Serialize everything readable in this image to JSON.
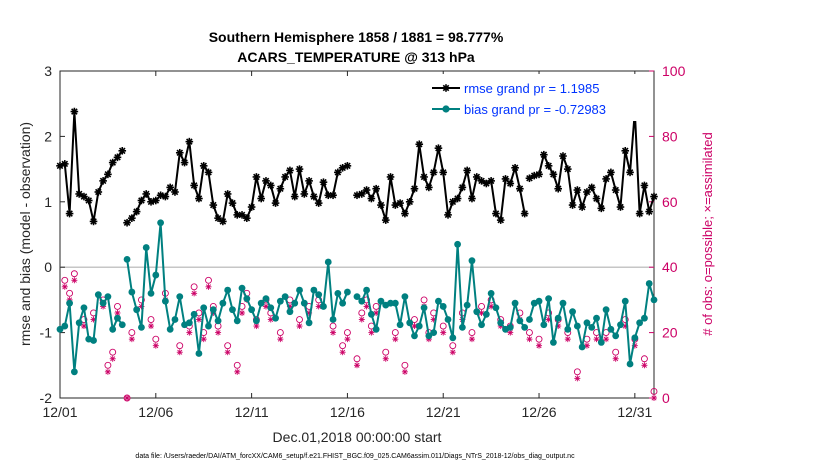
{
  "title_line1": "Southern Hemisphere 1858 / 1881 = 98.777%",
  "title_line2": "ACARS_TEMPERATURE @ 313 hPa",
  "footnote": "data file: /Users/raeder/DAI/ATM_forcXX/CAM6_setup/f.e21.FHIST_BGC.f09_025.CAM6assim.011/Diags_NTrS_2018-12/obs_diag_output.nc",
  "colors": {
    "rmse": "#000000",
    "bias": "#008080",
    "obs": "#cc0066",
    "zero": "#b3b3b3",
    "legend_text": "#0033ff"
  },
  "chart_data": {
    "type": "line",
    "xlabel": "Dec.01,2018 00:00:00 start",
    "ylabel": "rmse and bias (model - observation)",
    "ylabel_right": "# of obs: o=possible; ×=assimilated",
    "xlim": [
      0,
      31
    ],
    "ylim": [
      -2,
      3
    ],
    "ylim_right": [
      0,
      100
    ],
    "xticks": [
      0,
      5,
      10,
      15,
      20,
      25,
      30
    ],
    "xtick_labels": [
      "12/01",
      "12/06",
      "12/11",
      "12/16",
      "12/21",
      "12/26",
      "12/31"
    ],
    "yticks": [
      -2,
      -1,
      0,
      1,
      2,
      3
    ],
    "ytick_labels": [
      "-2",
      "-1",
      "0",
      "1",
      "2",
      "3"
    ],
    "yticks_right": [
      0,
      20,
      40,
      60,
      80,
      100
    ],
    "ytick_labels_right": [
      "0",
      "20",
      "40",
      "60",
      "80",
      "100"
    ],
    "legend": [
      {
        "series": "rmse",
        "label": "rmse grand pr = 1.1985"
      },
      {
        "series": "bias",
        "label": "bias grand pr = -0.72983"
      }
    ],
    "series": [
      {
        "name": "rmse",
        "segments": [
          {
            "x": [
              0.0,
              0.25,
              0.5,
              0.75,
              1.0,
              1.25,
              1.5,
              1.75,
              2.0,
              2.25,
              2.5,
              2.75,
              3.0,
              3.25
            ],
            "y": [
              1.55,
              1.58,
              0.82,
              2.38,
              1.12,
              1.08,
              1.02,
              0.7,
              1.15,
              1.32,
              1.42,
              1.6,
              1.68,
              1.78
            ]
          },
          {
            "x": [
              3.5,
              3.75,
              4.0,
              4.25,
              4.5,
              4.75,
              5.0,
              5.25,
              5.5,
              5.75,
              6.0,
              6.25,
              6.5,
              6.75,
              7.0,
              7.25,
              7.5,
              7.75,
              8.0,
              8.25,
              8.5,
              8.75,
              9.0,
              9.25,
              9.5,
              9.75,
              10.0,
              10.25,
              10.5,
              10.75,
              11.0,
              11.25,
              11.5,
              11.75,
              12.0,
              12.25,
              12.5,
              12.75,
              13.0,
              13.25,
              13.5,
              13.75,
              14.0,
              14.25,
              14.5,
              14.75,
              15.0
            ],
            "y": [
              0.68,
              0.75,
              0.85,
              1.02,
              1.12,
              1.0,
              1.02,
              1.1,
              1.08,
              1.22,
              1.15,
              1.75,
              1.6,
              1.92,
              1.25,
              1.05,
              1.55,
              1.45,
              0.95,
              0.75,
              0.7,
              1.12,
              0.98,
              0.8,
              0.8,
              0.75,
              0.92,
              1.38,
              1.05,
              1.32,
              1.25,
              0.98,
              1.2,
              1.38,
              1.48,
              1.08,
              1.5,
              1.12,
              1.32,
              1.08,
              0.98,
              1.3,
              1.1,
              1.1,
              1.45,
              1.52,
              1.55
            ]
          },
          {
            "x": [
              15.5,
              15.75,
              16.0,
              16.25,
              16.5,
              16.75,
              17.0,
              17.25,
              17.5,
              17.75,
              18.0,
              18.25,
              18.5,
              18.75,
              19.0,
              19.25,
              19.5,
              19.75,
              20.0,
              20.25,
              20.5,
              20.75,
              21.0,
              21.25,
              21.5,
              21.75,
              22.0,
              22.25,
              22.5,
              22.75,
              23.0,
              23.25,
              23.5,
              23.75,
              24.0,
              24.25
            ],
            "y": [
              1.1,
              1.12,
              1.18,
              1.05,
              1.2,
              0.95,
              0.72,
              1.38,
              0.95,
              0.98,
              0.82,
              1.0,
              1.2,
              1.88,
              1.38,
              1.22,
              1.45,
              1.82,
              1.45,
              0.8,
              1.0,
              1.05,
              1.22,
              1.48,
              1.05,
              1.38,
              1.32,
              1.28,
              1.32,
              0.82,
              0.72,
              1.35,
              1.28,
              1.52,
              1.2,
              0.82
            ]
          },
          {
            "x": [
              24.5,
              24.75,
              25.0,
              25.25,
              25.5,
              25.75,
              26.0,
              26.25,
              26.5,
              26.75,
              27.0,
              27.25,
              27.5,
              27.75,
              28.0,
              28.25,
              28.5,
              28.75,
              29.0,
              29.25,
              29.5,
              29.75,
              30.0,
              30.25,
              30.5,
              30.75,
              31.0
            ],
            "y": [
              1.36,
              1.4,
              1.42,
              1.72,
              1.55,
              1.42,
              1.2,
              1.7,
              1.5,
              0.95,
              1.18,
              0.92,
              1.15,
              1.22,
              1.05,
              0.9,
              1.35,
              1.45,
              1.18,
              0.92,
              1.78,
              1.45,
              2.38,
              0.82,
              1.25,
              0.85,
              1.08
            ]
          }
        ]
      },
      {
        "name": "bias",
        "segments": [
          {
            "x": [
              0.0,
              0.25,
              0.5,
              0.75,
              1.0,
              1.25,
              1.5,
              1.75,
              2.0,
              2.25,
              2.5,
              2.75,
              3.0,
              3.25
            ],
            "y": [
              -0.95,
              -0.9,
              -0.55,
              -1.6,
              -0.85,
              -0.62,
              -1.1,
              -1.12,
              -0.42,
              -0.55,
              -0.45,
              -0.95,
              -0.78,
              -0.88
            ]
          },
          {
            "x": [
              3.5,
              3.75,
              4.0,
              4.25,
              4.5,
              4.75,
              5.0,
              5.25,
              5.5,
              5.75,
              6.0,
              6.25,
              6.5,
              6.75,
              7.0,
              7.25,
              7.5,
              7.75,
              8.0,
              8.25,
              8.5,
              8.75,
              9.0,
              9.25,
              9.5,
              9.75,
              10.0,
              10.25,
              10.5,
              10.75,
              11.0,
              11.25,
              11.5,
              11.75,
              12.0,
              12.25,
              12.5,
              12.75,
              13.0,
              13.25,
              13.5,
              13.75,
              14.0,
              14.25,
              14.5,
              14.75,
              15.0
            ],
            "y": [
              0.12,
              -0.38,
              -0.65,
              -0.92,
              0.3,
              -0.4,
              -0.12,
              0.68,
              -0.52,
              -0.95,
              -0.8,
              -0.45,
              -0.88,
              -0.85,
              -0.72,
              -1.32,
              -0.62,
              -0.9,
              -0.65,
              -0.82,
              -0.55,
              -0.35,
              -0.65,
              -0.82,
              -0.32,
              -0.48,
              -0.65,
              -0.82,
              -0.55,
              -0.48,
              -0.62,
              -0.78,
              -0.52,
              -0.45,
              -0.68,
              -0.55,
              -0.35,
              -0.55,
              -0.85,
              -0.35,
              -0.42,
              -0.6,
              0.08,
              -0.8,
              -0.4,
              -0.55,
              -0.38
            ]
          },
          {
            "x": [
              15.5,
              15.75,
              16.0,
              16.25,
              16.5,
              16.75,
              17.0,
              17.25,
              17.5,
              17.75,
              18.0,
              18.25,
              18.5,
              18.75,
              19.0,
              19.25,
              19.5,
              19.75,
              20.0,
              20.25,
              20.5,
              20.75,
              21.0,
              21.25,
              21.5,
              21.75,
              22.0,
              22.25,
              22.5,
              22.75,
              23.0,
              23.25,
              23.5,
              23.75,
              24.0,
              24.25
            ],
            "y": [
              -0.45,
              -0.52,
              -0.35,
              -0.72,
              -0.95,
              -0.52,
              -0.58,
              -0.55,
              -0.55,
              -0.88,
              -0.45,
              -0.85,
              -1.05,
              -0.9,
              -0.62,
              -1.05,
              -1.0,
              -0.52,
              -0.6,
              -0.8,
              -1.08,
              0.35,
              -0.92,
              -0.58,
              0.1,
              -0.68,
              -0.88,
              -0.72,
              -0.4,
              -0.62,
              -0.85,
              -0.95,
              -0.92,
              -0.55,
              -0.82,
              -0.92
            ]
          },
          {
            "x": [
              24.5,
              24.75,
              25.0,
              25.25,
              25.5,
              25.75,
              26.0,
              26.25,
              26.5,
              26.75,
              27.0,
              27.25,
              27.5,
              27.75,
              28.0,
              28.25,
              28.5,
              28.75,
              29.0,
              29.25,
              29.5,
              29.75,
              30.0,
              30.25,
              30.5,
              30.75,
              31.0
            ],
            "y": [
              -0.8,
              -0.55,
              -0.52,
              -0.88,
              -0.48,
              -1.15,
              -0.78,
              -0.55,
              -0.95,
              -0.68,
              -0.9,
              -1.22,
              -0.85,
              -0.92,
              -0.78,
              -1.15,
              -0.65,
              -0.95,
              -1.05,
              -0.88,
              -0.52,
              -1.48,
              -1.08,
              -0.85,
              -0.78,
              -0.25,
              -0.5
            ]
          }
        ]
      },
      {
        "name": "obs_possible",
        "axis": "right",
        "x": [
          0.25,
          0.5,
          0.75,
          1.25,
          1.75,
          2.25,
          2.5,
          2.75,
          3.0,
          3.5,
          3.75,
          4.25,
          4.75,
          5.0,
          5.5,
          6.25,
          6.75,
          7.0,
          7.25,
          7.5,
          7.75,
          8.0,
          8.25,
          8.75,
          9.25,
          9.5,
          9.75,
          10.25,
          10.75,
          11.0,
          11.5,
          12.0,
          12.5,
          13.0,
          13.5,
          14.25,
          14.75,
          15.0,
          15.5,
          15.75,
          16.0,
          16.25,
          16.5,
          17.0,
          17.5,
          18.0,
          18.5,
          19.0,
          19.25,
          19.5,
          20.0,
          20.5,
          21.0,
          21.5,
          22.0,
          22.5,
          23.0,
          23.5,
          24.0,
          24.5,
          25.0,
          25.5,
          26.0,
          26.5,
          27.0,
          27.5,
          28.0,
          28.5,
          29.0,
          29.5,
          30.0,
          30.5,
          31.0
        ],
        "y": [
          36,
          32,
          38,
          24,
          26,
          30,
          10,
          14,
          28,
          0,
          20,
          30,
          24,
          18,
          32,
          16,
          22,
          34,
          26,
          20,
          36,
          28,
          22,
          16,
          10,
          28,
          32,
          24,
          30,
          26,
          20,
          30,
          24,
          28,
          30,
          22,
          16,
          20,
          12,
          26,
          30,
          22,
          28,
          14,
          20,
          10,
          24,
          30,
          20,
          26,
          22,
          16,
          26,
          20,
          28,
          30,
          24,
          22,
          26,
          20,
          18,
          26,
          24,
          20,
          8,
          18,
          20,
          20,
          14,
          24,
          18,
          12,
          2
        ]
      },
      {
        "name": "obs_assimilated",
        "axis": "right",
        "x": [
          0.25,
          0.5,
          0.75,
          1.25,
          1.75,
          2.25,
          2.5,
          2.75,
          3.0,
          3.5,
          3.75,
          4.25,
          4.75,
          5.0,
          5.5,
          6.25,
          6.75,
          7.0,
          7.25,
          7.5,
          7.75,
          8.0,
          8.25,
          8.75,
          9.25,
          9.5,
          9.75,
          10.25,
          10.75,
          11.0,
          11.5,
          12.0,
          12.5,
          13.0,
          13.5,
          14.25,
          14.75,
          15.0,
          15.5,
          15.75,
          16.0,
          16.25,
          16.5,
          17.0,
          17.5,
          18.0,
          18.5,
          19.0,
          19.25,
          19.5,
          20.0,
          20.5,
          21.0,
          21.5,
          22.0,
          22.5,
          23.0,
          23.5,
          24.0,
          24.5,
          25.0,
          25.5,
          26.0,
          26.5,
          27.0,
          27.5,
          28.0,
          28.5,
          29.0,
          29.5,
          30.0,
          30.5,
          31.0
        ],
        "y": [
          34,
          30,
          36,
          22,
          24,
          28,
          8,
          12,
          26,
          0,
          18,
          28,
          22,
          16,
          30,
          14,
          20,
          32,
          24,
          18,
          34,
          26,
          20,
          14,
          8,
          26,
          30,
          22,
          28,
          24,
          18,
          28,
          22,
          26,
          28,
          20,
          14,
          18,
          10,
          24,
          28,
          20,
          26,
          12,
          18,
          8,
          22,
          28,
          18,
          24,
          20,
          14,
          24,
          18,
          26,
          28,
          22,
          20,
          24,
          18,
          16,
          24,
          22,
          18,
          6,
          16,
          18,
          18,
          12,
          22,
          16,
          10,
          0
        ]
      }
    ]
  }
}
